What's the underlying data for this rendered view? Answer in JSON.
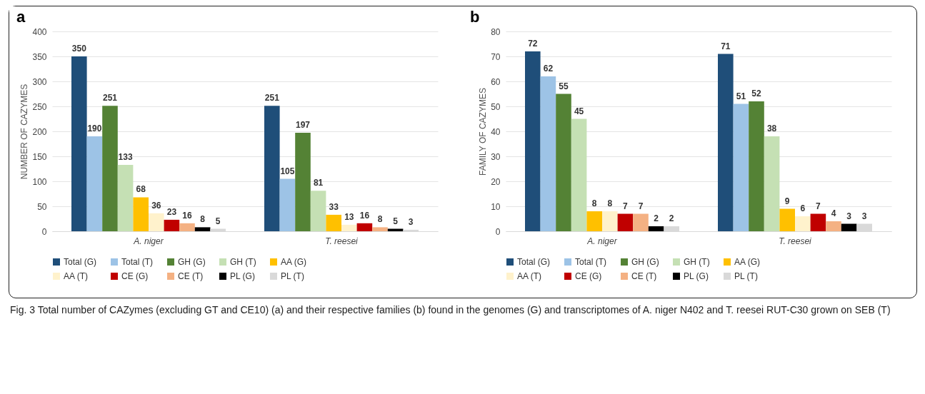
{
  "chart_data": [
    {
      "type": "bar",
      "title": "a",
      "ylabel": "NUMBER OF CAZYMES",
      "categories": [
        "A. niger",
        "T. reesei"
      ],
      "series": [
        {
          "name": "Total (G)",
          "color": "#1f4e79",
          "values": [
            350,
            251
          ]
        },
        {
          "name": "Total (T)",
          "color": "#9dc3e6",
          "values": [
            190,
            105
          ]
        },
        {
          "name": "GH (G)",
          "color": "#548235",
          "values": [
            251,
            197
          ]
        },
        {
          "name": "GH (T)",
          "color": "#c5e0b4",
          "values": [
            133,
            81
          ]
        },
        {
          "name": "AA (G)",
          "color": "#ffc000",
          "values": [
            68,
            33
          ]
        },
        {
          "name": "AA (T)",
          "color": "#fff2cc",
          "values": [
            36,
            13
          ]
        },
        {
          "name": "CE (G)",
          "color": "#c00000",
          "values": [
            23,
            16
          ]
        },
        {
          "name": "CE (T)",
          "color": "#f4b183",
          "values": [
            16,
            8
          ]
        },
        {
          "name": "PL (G)",
          "color": "#000000",
          "values": [
            8,
            5
          ]
        },
        {
          "name": "PL (T)",
          "color": "#d9d9d9",
          "values": [
            5,
            3
          ]
        }
      ],
      "ylim": [
        0,
        400
      ],
      "yticks": [
        0,
        50,
        100,
        150,
        200,
        250,
        300,
        350,
        400
      ],
      "grid": "y",
      "legend": "bottom",
      "data_labels": true,
      "annotations": [
        "Fig. 3 Total number of CAZymes (excluding GT and CE10) (a) and their respective families (b) found in the genomes (G) and transcriptomes of A. niger N402 and T. reesei RUT-C30 grown on SEB (T)"
      ]
    },
    {
      "type": "bar",
      "title": "b",
      "ylabel": "FAMILY OF CAZYMES",
      "categories": [
        "A. niger",
        "T. reesei"
      ],
      "series": [
        {
          "name": "Total (G)",
          "color": "#1f4e79",
          "values": [
            72,
            71
          ]
        },
        {
          "name": "Total (T)",
          "color": "#9dc3e6",
          "values": [
            62,
            51
          ]
        },
        {
          "name": "GH (G)",
          "color": "#548235",
          "values": [
            55,
            52
          ]
        },
        {
          "name": "GH (T)",
          "color": "#c5e0b4",
          "values": [
            45,
            38
          ]
        },
        {
          "name": "AA (G)",
          "color": "#ffc000",
          "values": [
            8,
            9
          ]
        },
        {
          "name": "AA (T)",
          "color": "#fff2cc",
          "values": [
            8,
            6
          ]
        },
        {
          "name": "CE (G)",
          "color": "#c00000",
          "values": [
            7,
            7
          ]
        },
        {
          "name": "CE (T)",
          "color": "#f4b183",
          "values": [
            7,
            4
          ]
        },
        {
          "name": "PL (G)",
          "color": "#000000",
          "values": [
            2,
            3
          ]
        },
        {
          "name": "PL (T)",
          "color": "#d9d9d9",
          "values": [
            2,
            3
          ]
        }
      ],
      "ylim": [
        0,
        80
      ],
      "yticks": [
        0,
        10,
        20,
        30,
        40,
        50,
        60,
        70,
        80
      ],
      "grid": "y",
      "legend": "bottom",
      "data_labels": true
    }
  ]
}
